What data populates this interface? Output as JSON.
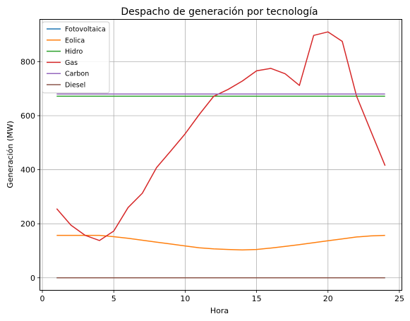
{
  "chart_data": {
    "type": "line",
    "title": "Despacho de generación por tecnología",
    "xlabel": "Hora",
    "ylabel": "Generación (MW)",
    "xlim": [
      -0.15,
      25.15
    ],
    "ylim": [
      -45,
      955
    ],
    "x_ticks": [
      0,
      5,
      10,
      15,
      20,
      25
    ],
    "y_ticks": [
      0,
      200,
      400,
      600,
      800
    ],
    "grid": true,
    "legend_position": "top-left",
    "x": [
      1,
      2,
      3,
      4,
      5,
      6,
      7,
      8,
      9,
      10,
      11,
      12,
      13,
      14,
      15,
      16,
      17,
      18,
      19,
      20,
      21,
      22,
      23,
      24
    ],
    "series": [
      {
        "name": "Fotovoltaica",
        "color": "#1f77b4",
        "values": [
          0,
          0,
          0,
          0,
          0,
          0,
          0,
          0,
          0,
          0,
          0,
          0,
          0,
          0,
          0,
          0,
          0,
          0,
          0,
          0,
          0,
          0,
          0,
          0
        ]
      },
      {
        "name": "Eolica",
        "color": "#ff7f0e",
        "values": [
          157,
          157,
          157,
          157,
          152,
          146,
          139,
          132,
          125,
          118,
          111,
          107,
          105,
          103,
          105,
          110,
          116,
          123,
          130,
          137,
          144,
          151,
          155,
          157
        ]
      },
      {
        "name": "Hidro",
        "color": "#2ca02c",
        "values": [
          672,
          672,
          672,
          672,
          672,
          672,
          672,
          672,
          672,
          672,
          672,
          672,
          672,
          672,
          672,
          672,
          672,
          672,
          672,
          672,
          672,
          672,
          672,
          672
        ]
      },
      {
        "name": "Gas",
        "color": "#d62728",
        "values": [
          256,
          195,
          157,
          138,
          173,
          260,
          313,
          408,
          470,
          533,
          605,
          672,
          697,
          728,
          766,
          775,
          755,
          712,
          897,
          910,
          875,
          672,
          543,
          415
        ]
      },
      {
        "name": "Carbon",
        "color": "#9467bd",
        "values": [
          680,
          680,
          680,
          680,
          680,
          680,
          680,
          680,
          680,
          680,
          680,
          680,
          680,
          680,
          680,
          680,
          680,
          680,
          680,
          680,
          680,
          680,
          680,
          680
        ]
      },
      {
        "name": "Diesel",
        "color": "#8c564b",
        "values": [
          0,
          0,
          0,
          0,
          0,
          0,
          0,
          0,
          0,
          0,
          0,
          0,
          0,
          0,
          0,
          0,
          0,
          0,
          0,
          0,
          0,
          0,
          0,
          0
        ]
      }
    ]
  }
}
